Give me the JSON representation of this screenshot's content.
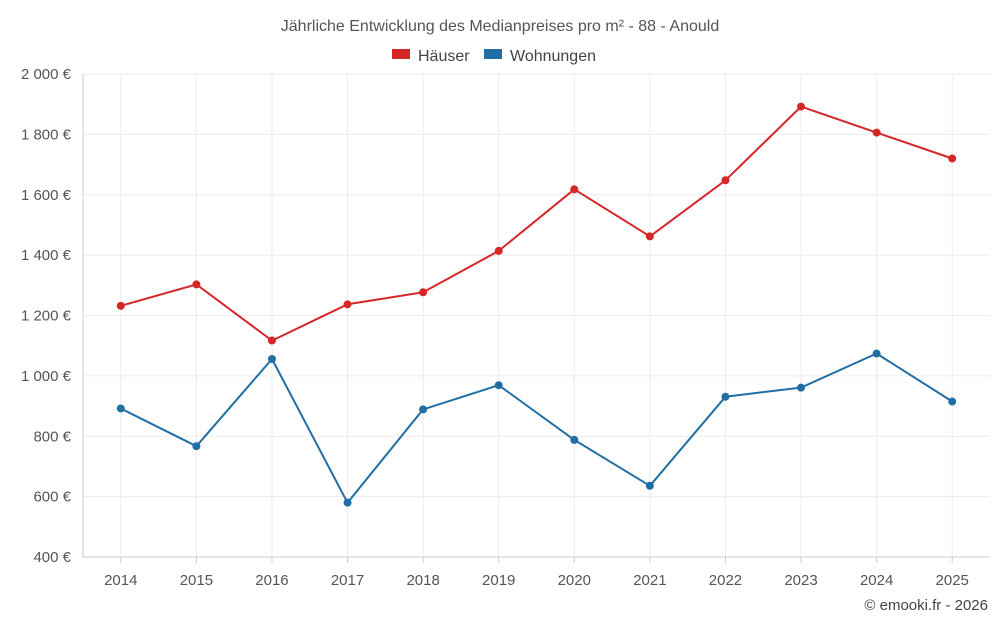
{
  "chart_data": {
    "type": "line",
    "title": "Jährliche Entwicklung des Medianpreises pro m² - 88 - Anould",
    "categories": [
      "2014",
      "2015",
      "2016",
      "2017",
      "2018",
      "2019",
      "2020",
      "2021",
      "2022",
      "2023",
      "2024",
      "2025"
    ],
    "series": [
      {
        "name": "Häuser",
        "color": "#d62728",
        "values": [
          1232,
          1303,
          1117,
          1237,
          1277,
          1414,
          1618,
          1462,
          1648,
          1892,
          1806,
          1720
        ]
      },
      {
        "name": "Wohnungen",
        "color": "#1f6fa5",
        "values": [
          892,
          767,
          1056,
          580,
          889,
          969,
          788,
          636,
          931,
          961,
          1074,
          915
        ]
      }
    ],
    "ylim": [
      400,
      2000
    ],
    "yticks": [
      400,
      600,
      800,
      1000,
      1200,
      1400,
      1600,
      1800,
      2000
    ],
    "ytick_labels": [
      "400 €",
      "600 €",
      "800 €",
      "1 000 €",
      "1 200 €",
      "1 400 €",
      "1 600 €",
      "1 800 €",
      "2 000 €"
    ],
    "xlabel": "",
    "ylabel": "",
    "legend_position": "top-center",
    "grid": true
  },
  "credit": "© emooki.fr - 2026"
}
